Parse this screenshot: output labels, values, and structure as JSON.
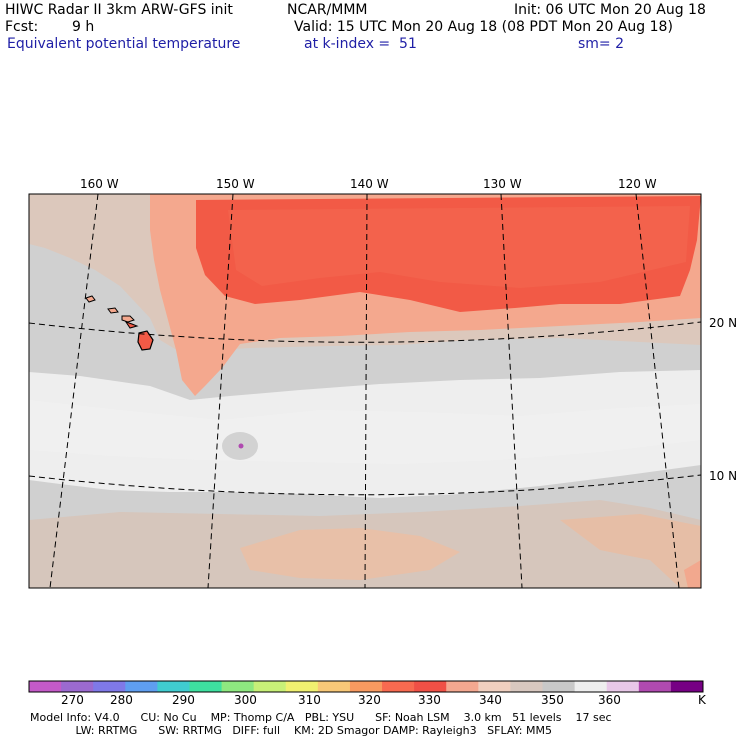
{
  "header": {
    "title": "HIWC Radar II 3km ARW-GFS init",
    "org": "NCAR/MMM",
    "init": "Init: 06 UTC Mon 20 Aug 18",
    "fcst_label": "Fcst:",
    "fcst_value": "9 h",
    "valid": "Valid: 15 UTC Mon 20 Aug 18 (08 PDT Mon 20 Aug 18)",
    "field": "Equivalent potential temperature",
    "level": "at k-index =  51",
    "smoothing": "sm= 2"
  },
  "map": {
    "longitude_labels": [
      "160 W",
      "150 W",
      "140 W",
      "130 W",
      "120 W"
    ],
    "latitude_labels": [
      "20 N",
      "10 N"
    ]
  },
  "colorbar": {
    "unit": "K",
    "tick_labels": [
      "270",
      "280",
      "290",
      "300",
      "310",
      "320",
      "330",
      "340",
      "350",
      "360"
    ],
    "colors": [
      "#c45ac8",
      "#9b6ad0",
      "#7f79e8",
      "#5f9ef0",
      "#40ccd0",
      "#3ee0a0",
      "#8ee880",
      "#c8f078",
      "#f0f070",
      "#f8c878",
      "#f89a60",
      "#f86a50",
      "#f05046",
      "#f4a890",
      "#f0d0c0",
      "#d8c8c0",
      "#c8c8c8",
      "#eeeeee",
      "#e8c8e8",
      "#b04ab0",
      "#760084"
    ]
  },
  "footer": {
    "line1": "Model Info: V4.0      CU: No Cu    MP: Thomp C/A   PBL: YSU      SF: Noah LSM    3.0 km   51 levels    17 sec",
    "line2": "             LW: RRTMG      SW: RRTMG   DIFF: full    KM: 2D Smagor DAMP: Rayleigh3   SFLAY: MM5"
  }
}
